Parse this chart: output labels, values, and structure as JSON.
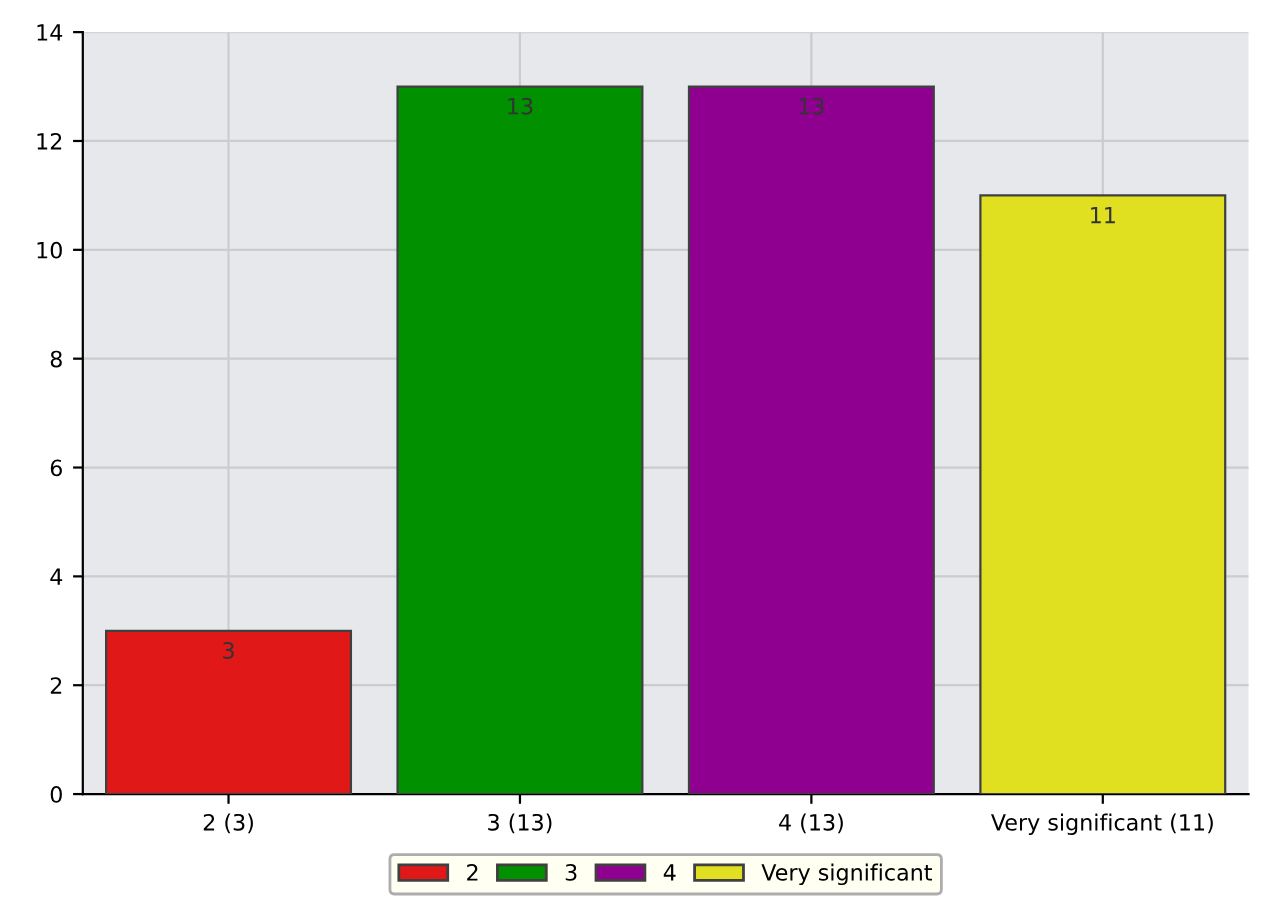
{
  "chart_data": {
    "type": "bar",
    "categories": [
      "2 (3)",
      "3 (13)",
      "4 (13)",
      "Very significant (11)"
    ],
    "series": [
      {
        "name": "2",
        "color": "#e01818",
        "values": [
          3,
          null,
          null,
          null
        ]
      },
      {
        "name": "3",
        "color": "#009000",
        "values": [
          null,
          13,
          null,
          null
        ]
      },
      {
        "name": "4",
        "color": "#900090",
        "values": [
          null,
          null,
          13,
          null
        ]
      },
      {
        "name": "Very significant",
        "color": "#e0e020",
        "values": [
          null,
          null,
          null,
          11
        ]
      }
    ],
    "ylim": [
      0,
      14
    ],
    "yticks": [
      0,
      2,
      4,
      6,
      8,
      10,
      12,
      14
    ],
    "grid": true,
    "legend": "bottom",
    "data_labels": true
  }
}
